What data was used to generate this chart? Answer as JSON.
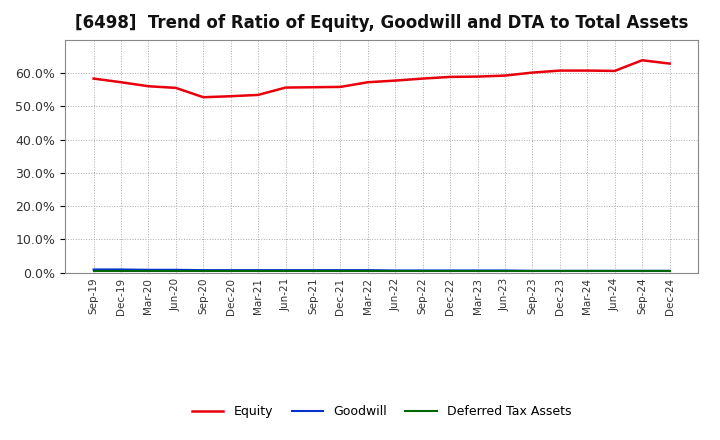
{
  "title": "[6498]  Trend of Ratio of Equity, Goodwill and DTA to Total Assets",
  "x_labels": [
    "Sep-19",
    "Dec-19",
    "Mar-20",
    "Jun-20",
    "Sep-20",
    "Dec-20",
    "Mar-21",
    "Jun-21",
    "Sep-21",
    "Dec-21",
    "Mar-22",
    "Jun-22",
    "Sep-22",
    "Dec-22",
    "Mar-23",
    "Jun-23",
    "Sep-23",
    "Dec-23",
    "Mar-24",
    "Jun-24",
    "Sep-24",
    "Dec-24"
  ],
  "equity": [
    0.583,
    0.572,
    0.56,
    0.555,
    0.527,
    0.53,
    0.534,
    0.556,
    0.557,
    0.558,
    0.572,
    0.577,
    0.583,
    0.588,
    0.589,
    0.592,
    0.601,
    0.607,
    0.607,
    0.606,
    0.638,
    0.628
  ],
  "goodwill": [
    0.01,
    0.01,
    0.009,
    0.009,
    0.008,
    0.008,
    0.008,
    0.008,
    0.008,
    0.008,
    0.008,
    0.007,
    0.007,
    0.007,
    0.007,
    0.007,
    0.006,
    0.006,
    0.006,
    0.006,
    0.006,
    0.006
  ],
  "dta": [
    0.004,
    0.004,
    0.004,
    0.004,
    0.004,
    0.004,
    0.004,
    0.004,
    0.004,
    0.004,
    0.004,
    0.004,
    0.004,
    0.004,
    0.004,
    0.004,
    0.004,
    0.004,
    0.004,
    0.004,
    0.004,
    0.004
  ],
  "equity_color": "#e8000d",
  "goodwill_color": "#0033cc",
  "dta_color": "#006600",
  "bg_color": "#ffffff",
  "plot_bg_color": "#ffffff",
  "grid_color": "#aaaaaa",
  "ylim": [
    0.0,
    0.7
  ],
  "yticks": [
    0.0,
    0.1,
    0.2,
    0.3,
    0.4,
    0.5,
    0.6
  ],
  "title_fontsize": 12,
  "legend_labels": [
    "Equity",
    "Goodwill",
    "Deferred Tax Assets"
  ]
}
